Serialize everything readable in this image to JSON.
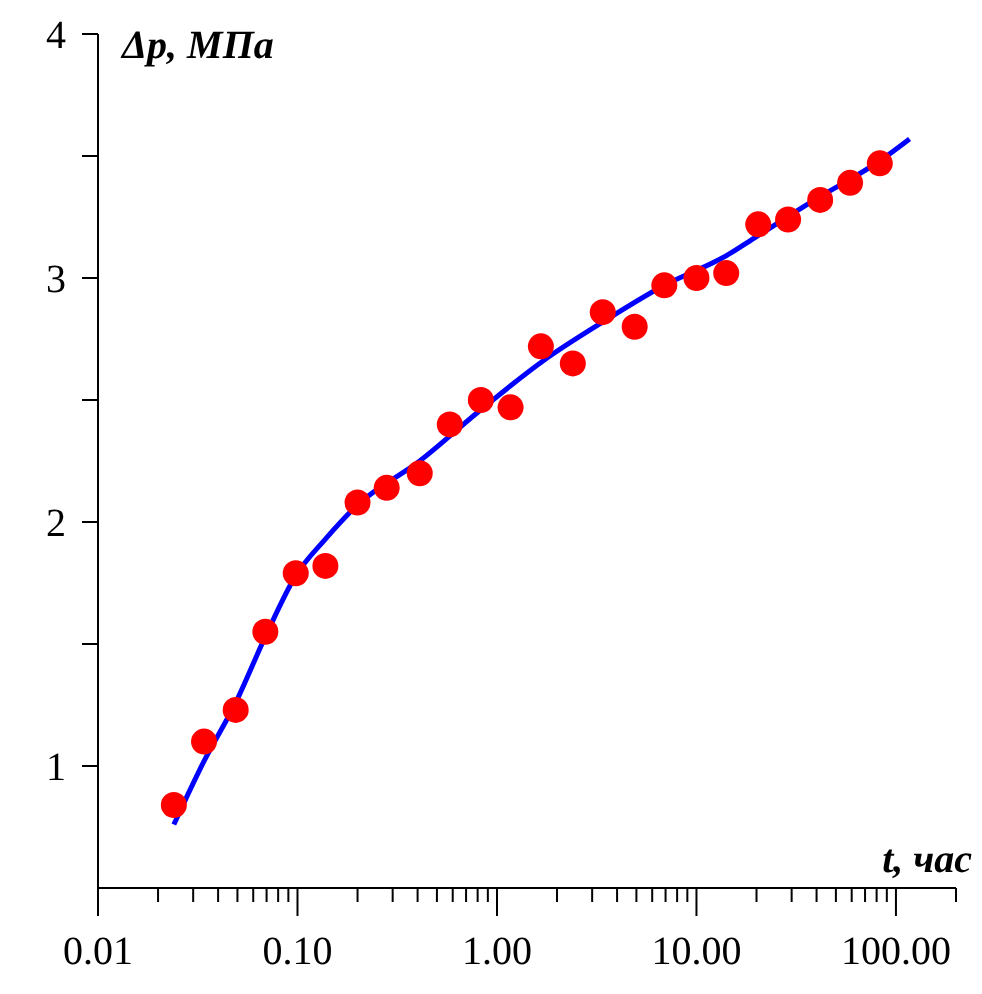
{
  "chart_data": {
    "type": "scatter",
    "xlabel": "t, час",
    "ylabel": "Δp, МПа",
    "log": "x",
    "grid": false,
    "xlim": [
      0.01,
      200
    ],
    "ylim": [
      0.5,
      4
    ],
    "xticks": [
      {
        "value": 0.01,
        "label": "0.01"
      },
      {
        "value": 0.02,
        "label": null
      },
      {
        "value": 0.03,
        "label": null
      },
      {
        "value": 0.04,
        "label": null
      },
      {
        "value": 0.05,
        "label": null
      },
      {
        "value": 0.06,
        "label": null
      },
      {
        "value": 0.07,
        "label": null
      },
      {
        "value": 0.08,
        "label": null
      },
      {
        "value": 0.09,
        "label": null
      },
      {
        "value": 0.1,
        "label": "0.10"
      },
      {
        "value": 0.2,
        "label": null
      },
      {
        "value": 0.3,
        "label": null
      },
      {
        "value": 0.4,
        "label": null
      },
      {
        "value": 0.5,
        "label": null
      },
      {
        "value": 0.6,
        "label": null
      },
      {
        "value": 0.7,
        "label": null
      },
      {
        "value": 0.8,
        "label": null
      },
      {
        "value": 0.9,
        "label": null
      },
      {
        "value": 1,
        "label": "1.00"
      },
      {
        "value": 2,
        "label": null
      },
      {
        "value": 3,
        "label": null
      },
      {
        "value": 4,
        "label": null
      },
      {
        "value": 5,
        "label": null
      },
      {
        "value": 6,
        "label": null
      },
      {
        "value": 7,
        "label": null
      },
      {
        "value": 8,
        "label": null
      },
      {
        "value": 9,
        "label": null
      },
      {
        "value": 10,
        "label": "10.00"
      },
      {
        "value": 20,
        "label": null
      },
      {
        "value": 30,
        "label": null
      },
      {
        "value": 40,
        "label": null
      },
      {
        "value": 50,
        "label": null
      },
      {
        "value": 60,
        "label": null
      },
      {
        "value": 70,
        "label": null
      },
      {
        "value": 80,
        "label": null
      },
      {
        "value": 90,
        "label": null
      },
      {
        "value": 100,
        "label": "100.00"
      },
      {
        "value": 200,
        "label": null
      }
    ],
    "yticks": [
      1,
      {
        "value": 1.5,
        "label": null
      },
      2,
      {
        "value": 2.5,
        "label": null
      },
      3,
      {
        "value": 3.5,
        "label": null
      },
      4
    ],
    "series": [
      {
        "color": "#ff0000",
        "marker": "circle",
        "x": [
          0.024,
          0.034,
          0.049,
          0.069,
          0.098,
          0.138,
          0.2,
          0.28,
          0.41,
          0.58,
          0.83,
          1.17,
          1.66,
          2.4,
          3.39,
          4.9,
          6.9,
          10,
          14.1,
          20.4,
          28.8,
          41.7,
          58.9,
          83
        ],
        "values": [
          0.84,
          1.1,
          1.23,
          1.55,
          1.79,
          1.82,
          2.08,
          2.14,
          2.2,
          2.4,
          2.5,
          2.47,
          2.72,
          2.65,
          2.86,
          2.8,
          2.97,
          3.0,
          3.02,
          3.22,
          3.24,
          3.32,
          3.39,
          3.47
        ]
      },
      {
        "type": "line",
        "color": "#0000ff",
        "marker": "none",
        "line_style": "solid",
        "x": [
          0.024,
          0.034,
          0.049,
          0.069,
          0.098,
          0.138,
          0.2,
          0.41,
          0.83,
          1.7,
          3.4,
          6.9,
          14,
          20,
          41,
          83,
          117
        ],
        "values": [
          0.76,
          1.02,
          1.26,
          1.53,
          1.78,
          1.93,
          2.07,
          2.25,
          2.46,
          2.66,
          2.82,
          2.97,
          3.09,
          3.17,
          3.33,
          3.48,
          3.57
        ]
      }
    ]
  }
}
